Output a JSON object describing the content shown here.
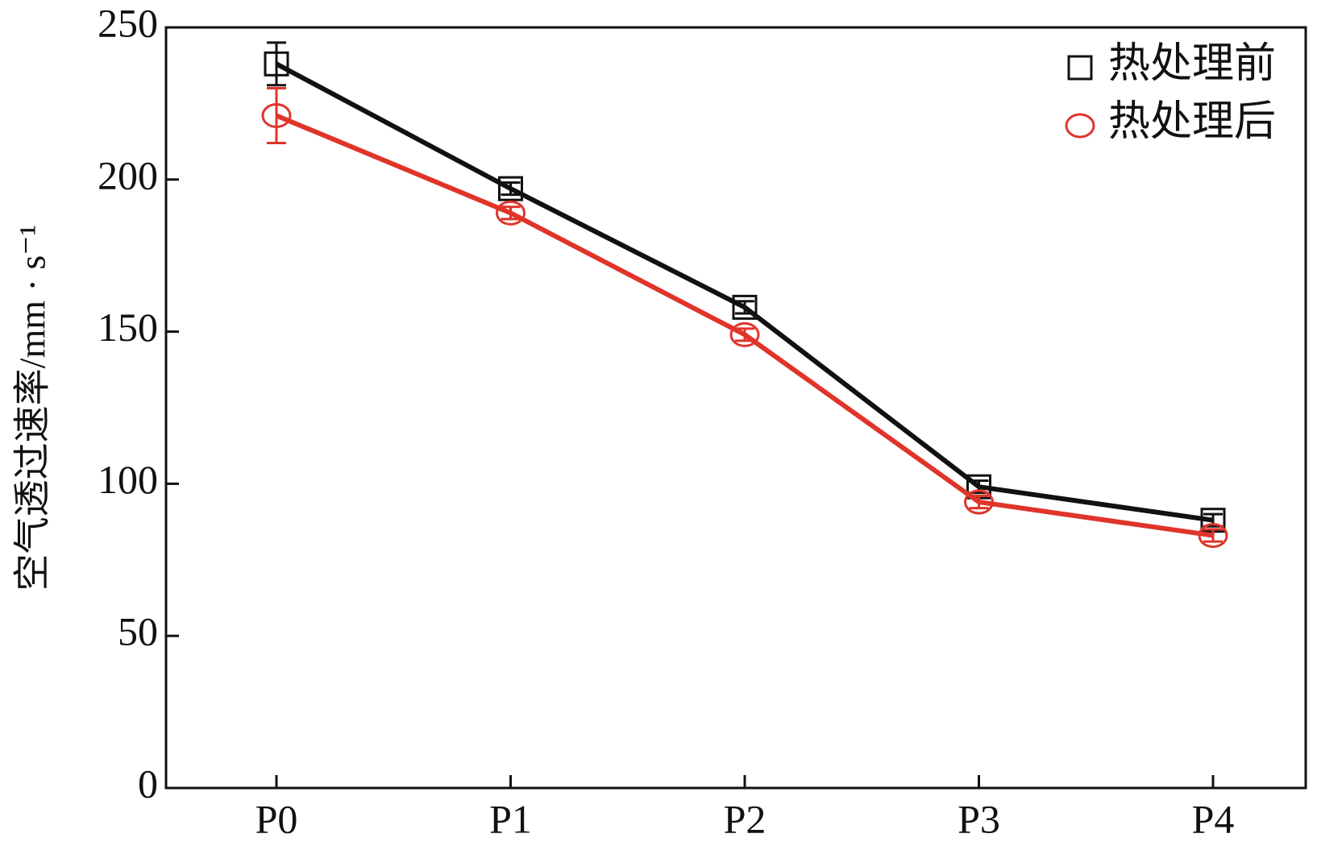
{
  "chart_data": {
    "type": "line",
    "ylabel": "空气透过速率/mm · s⁻¹",
    "categories": [
      "P0",
      "P1",
      "P2",
      "P3",
      "P4"
    ],
    "series": [
      {
        "name": "热处理前",
        "color": "#111111",
        "marker": "square",
        "values": [
          238,
          197,
          158,
          99,
          88
        ],
        "errors": [
          7,
          2,
          2,
          2,
          2
        ]
      },
      {
        "name": "热处理后",
        "color": "#e0342a",
        "marker": "circle",
        "values": [
          221,
          189,
          149,
          94,
          83
        ],
        "errors": [
          9,
          2,
          2,
          2,
          2
        ]
      }
    ],
    "ylim": [
      0,
      250
    ],
    "yticks": [
      0,
      50,
      100,
      150,
      200,
      250
    ],
    "legend": "upper right"
  }
}
